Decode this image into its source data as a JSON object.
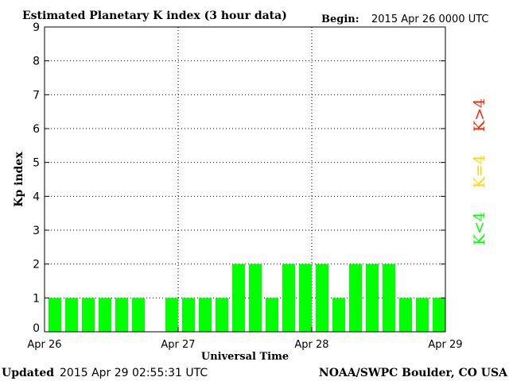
{
  "chart_data": {
    "type": "bar",
    "title": "Estimated Planetary K index (3 hour data)",
    "begin_label": "Begin:",
    "begin_value": "2015 Apr 26 0000 UTC",
    "xlabel": "Universal Time",
    "ylabel": "Kp index",
    "ylim": [
      0,
      9
    ],
    "yticks": [
      "0",
      "1",
      "2",
      "3",
      "4",
      "5",
      "6",
      "7",
      "8",
      "9"
    ],
    "xticks": [
      "Apr 26",
      "Apr 27",
      "Apr 28",
      "Apr 29"
    ],
    "grid": true,
    "bar_interval_hours": 3,
    "values": [
      1,
      1,
      1,
      1,
      1,
      1,
      null,
      1,
      1,
      1,
      1,
      2,
      2,
      1,
      2,
      2,
      2,
      1,
      2,
      2,
      2,
      1,
      1,
      1
    ],
    "legend": [
      {
        "label": "K<4",
        "color": "#00ff00"
      },
      {
        "label": "K=4",
        "color": "#ffd700"
      },
      {
        "label": "K>4",
        "color": "#ff2000"
      }
    ]
  },
  "footer": {
    "updated_label": "Updated",
    "updated_value": "2015 Apr 29 02:55:31 UTC",
    "credit": "NOAA/SWPC Boulder, CO USA"
  },
  "colors": {
    "bar_low": "#00ff00",
    "bar_equal": "#ffd700",
    "bar_high": "#ff2000",
    "axis": "#000000",
    "grid": "#000000"
  }
}
